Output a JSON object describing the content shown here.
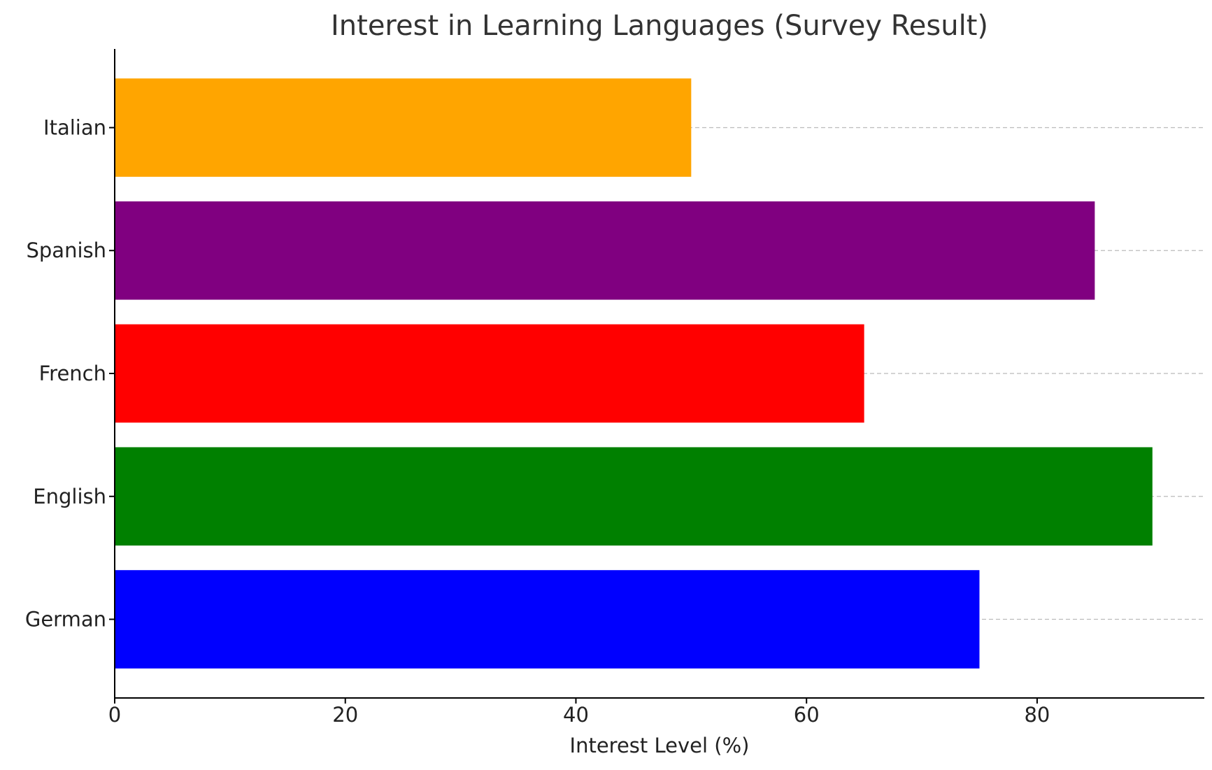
{
  "chart_data": {
    "type": "barh",
    "title": "Interest in Learning Languages (Survey Result)",
    "xlabel": "Interest Level (%)",
    "categories": [
      "German",
      "English",
      "French",
      "Spanish",
      "Italian"
    ],
    "values": [
      75,
      90,
      65,
      85,
      50
    ],
    "colors": [
      "#0000ff",
      "#008000",
      "#ff0000",
      "#800080",
      "#ffa500"
    ],
    "xlim": [
      0,
      94.5
    ],
    "xticks": [
      0,
      20,
      40,
      60,
      80
    ],
    "grid": "y"
  }
}
